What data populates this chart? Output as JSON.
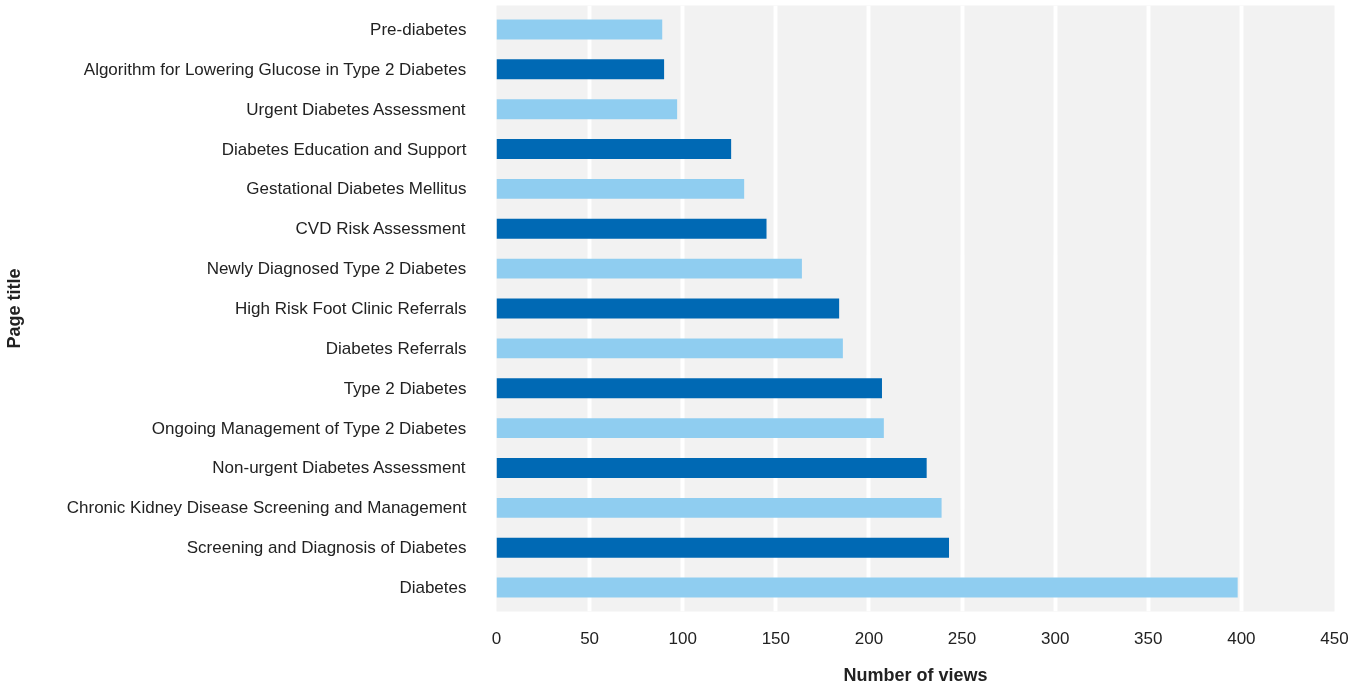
{
  "chart_data": {
    "type": "bar",
    "orientation": "horizontal",
    "xlabel": "Number of views",
    "ylabel": "Page title",
    "categories": [
      "Pre-diabetes",
      "Algorithm for Lowering Glucose in Type 2 Diabetes",
      "Urgent Diabetes Assessment",
      "Diabetes Education and Support",
      "Gestational Diabetes Mellitus",
      "CVD Risk Assessment",
      "Newly Diagnosed Type 2 Diabetes",
      "High Risk Foot Clinic Referrals",
      "Diabetes Referrals",
      "Type 2 Diabetes",
      "Ongoing Management of Type 2 Diabetes",
      "Non-urgent Diabetes Assessment",
      "Chronic Kidney Disease Screening and Management",
      "Screening and Diagnosis of Diabetes",
      "Diabetes"
    ],
    "values": [
      89,
      90,
      97,
      126,
      133,
      145,
      164,
      184,
      186,
      207,
      208,
      231,
      239,
      243,
      398
    ],
    "colors": [
      "#8fcdf0",
      "#0069b4",
      "#8fcdf0",
      "#0069b4",
      "#8fcdf0",
      "#0069b4",
      "#8fcdf0",
      "#0069b4",
      "#8fcdf0",
      "#0069b4",
      "#8fcdf0",
      "#0069b4",
      "#8fcdf0",
      "#0069b4",
      "#8fcdf0"
    ],
    "xlim": [
      0,
      450
    ],
    "xticks": [
      0,
      50,
      100,
      150,
      200,
      250,
      300,
      350,
      400,
      450
    ],
    "grid": "x"
  }
}
